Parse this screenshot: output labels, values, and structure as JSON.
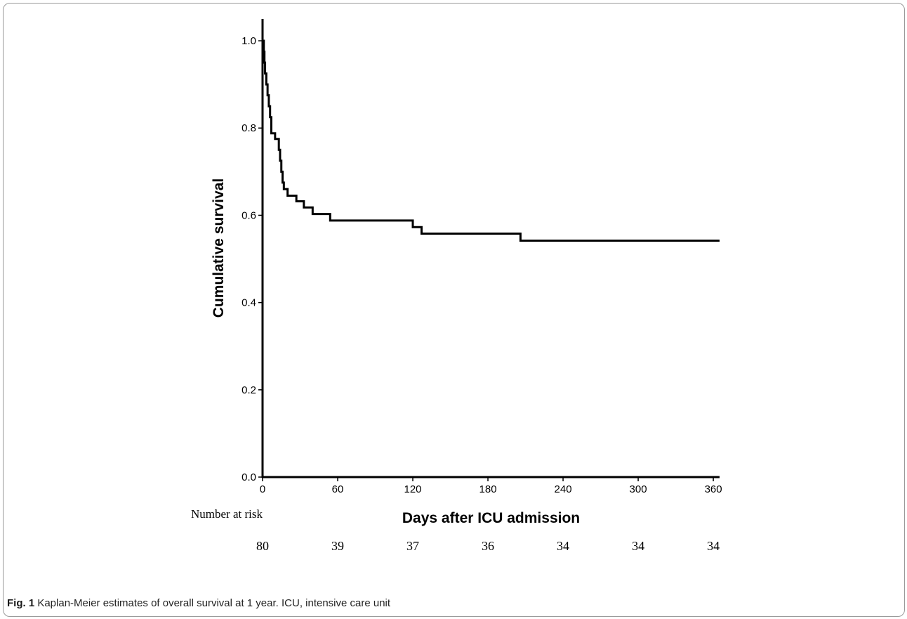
{
  "chart_data": {
    "type": "line",
    "step": true,
    "xlabel": "Days after ICU admission",
    "ylabel": "Cumulative survival",
    "xlim": [
      0,
      365
    ],
    "ylim": [
      0,
      1.05
    ],
    "xticks": [
      0,
      60,
      120,
      180,
      240,
      300,
      360
    ],
    "yticks": [
      0.0,
      0.2,
      0.4,
      0.6,
      0.8,
      1.0
    ],
    "ytick_labels": [
      "0.0",
      "0.2",
      "0.4",
      "0.6",
      "0.8",
      "1.0"
    ],
    "series": [
      {
        "x": [
          0,
          1,
          1.5,
          2,
          3,
          4,
          5,
          6,
          7,
          10,
          13,
          14,
          15,
          16,
          17,
          20,
          27,
          33,
          40,
          54,
          120,
          127,
          206,
          365
        ],
        "y": [
          1.0,
          0.975,
          0.95,
          0.925,
          0.9,
          0.875,
          0.85,
          0.825,
          0.788,
          0.775,
          0.75,
          0.725,
          0.7,
          0.675,
          0.66,
          0.645,
          0.632,
          0.618,
          0.603,
          0.588,
          0.573,
          0.558,
          0.542,
          0.542
        ]
      }
    ],
    "number_at_risk": {
      "title": "Number at risk",
      "x": [
        0,
        60,
        120,
        180,
        240,
        300,
        360
      ],
      "values": [
        80,
        39,
        37,
        36,
        34,
        34,
        34
      ]
    }
  },
  "caption": {
    "label": "Fig. 1",
    "text": " Kaplan-Meier estimates of overall survival at 1 year. ICU, intensive care unit"
  }
}
